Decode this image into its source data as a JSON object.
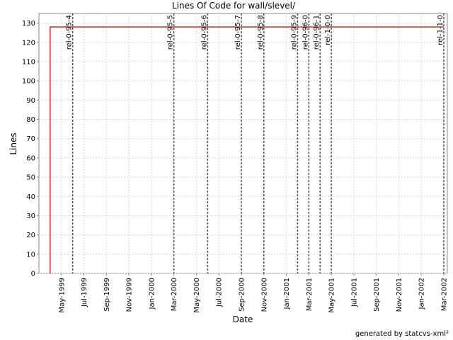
{
  "chart_data": {
    "type": "line",
    "title": "Lines Of Code for wall/slevel/",
    "x_label": "Date",
    "y_label": "Lines",
    "footer": "generated by statcvs-xml²",
    "x": [
      "1999-04",
      "1999-04",
      "2002-03"
    ],
    "series": [
      {
        "name": "Lines",
        "color": "#cc0000",
        "values": [
          0,
          128,
          128
        ]
      }
    ],
    "xlim": [
      "1999-03",
      "2002-03"
    ],
    "xticks": [
      {
        "value": "1999-05",
        "label": "May-1999"
      },
      {
        "value": "1999-07",
        "label": "Jul-1999"
      },
      {
        "value": "1999-09",
        "label": "Sep-1999"
      },
      {
        "value": "1999-11",
        "label": "Nov-1999"
      },
      {
        "value": "2000-01",
        "label": "Jan-2000"
      },
      {
        "value": "2000-03",
        "label": "Mar-2000"
      },
      {
        "value": "2000-05",
        "label": "May-2000"
      },
      {
        "value": "2000-07",
        "label": "Jul-2000"
      },
      {
        "value": "2000-09",
        "label": "Sep-2000"
      },
      {
        "value": "2000-11",
        "label": "Nov-2000"
      },
      {
        "value": "2001-01",
        "label": "Jan-2001"
      },
      {
        "value": "2001-03",
        "label": "Mar-2001"
      },
      {
        "value": "2001-05",
        "label": "May-2001"
      },
      {
        "value": "2001-07",
        "label": "Jul-2001"
      },
      {
        "value": "2001-09",
        "label": "Sep-2001"
      },
      {
        "value": "2001-11",
        "label": "Nov-2001"
      },
      {
        "value": "2002-01",
        "label": "Jan-2002"
      },
      {
        "value": "2002-03",
        "label": "Mar-2002"
      }
    ],
    "ylim": [
      0,
      135
    ],
    "yticks": [
      0,
      10,
      20,
      30,
      40,
      50,
      60,
      70,
      80,
      90,
      100,
      110,
      120,
      130
    ],
    "grid": true,
    "markers": [
      {
        "name": "rel-0-95-4",
        "x": "1999-06"
      },
      {
        "name": "rel-0-95-5",
        "x": "2000-03"
      },
      {
        "name": "rel-0-95-6",
        "x": "2000-06"
      },
      {
        "name": "rel-0-95-7",
        "x": "2000-09"
      },
      {
        "name": "rel-0-95-8",
        "x": "2000-11"
      },
      {
        "name": "rel-0-95-9",
        "x": "2001-02"
      },
      {
        "name": "rel-0-96-0",
        "x": "2001-03"
      },
      {
        "name": "rel-0-96-1",
        "x": "2001-04"
      },
      {
        "name": "rel-1-0-0",
        "x": "2001-05"
      },
      {
        "name": "rel-1-1-0",
        "x": "2002-03"
      }
    ]
  }
}
